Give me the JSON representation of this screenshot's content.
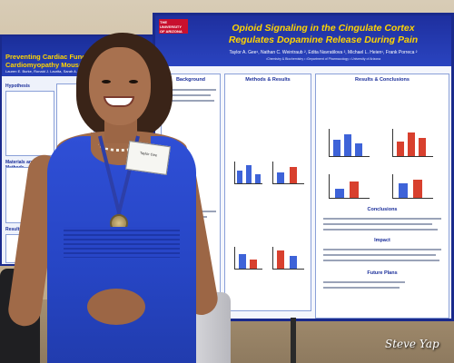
{
  "poster_main": {
    "university": "THE UNIVERSITY OF ARIZONA",
    "title": "Opioid Signaling in the Cingulate Cortex Regulates Dopamine Release During Pain",
    "authors": "Taylor A. Gee¹, Nathan C. Weintraub ², Edita Navratilova ², Michael L. Heien¹, Frank Porreca ²",
    "affiliation": "¹Chemistry & Biochemistry • ²Department of Pharmacology • University of Arizona",
    "sections": {
      "background": "Background",
      "methods": "Methods & Results",
      "results": "Results & Conclusions",
      "conclusions": "Conclusions",
      "impact": "Impact",
      "future": "Future Plans"
    }
  },
  "poster_left": {
    "title": "Preventing Cardiac Function Deficit in Dilated Cardiomyopathy Mouse Model",
    "authors": "Lauren E. Burke, Ronald J. Laurita, Sarah A. Anugwom",
    "sections": {
      "hypothesis": "Hypothesis",
      "methods": "Materials and Methods",
      "results": "Results"
    }
  },
  "badge": {
    "text": "Taylor Gee"
  },
  "watermark": {
    "text": "Steve Yap"
  }
}
